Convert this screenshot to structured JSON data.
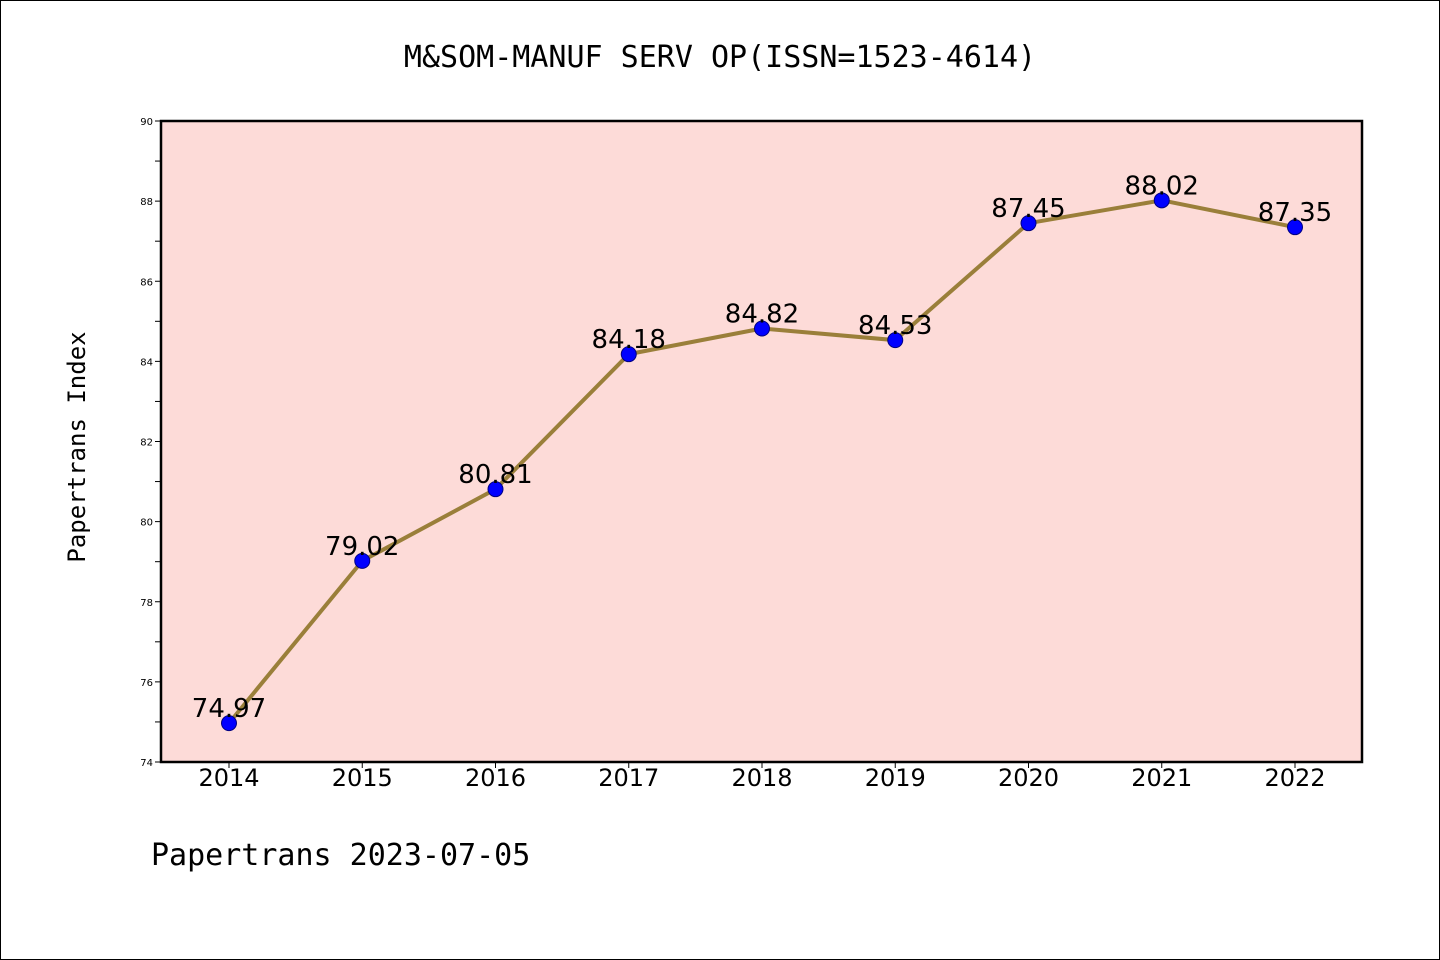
{
  "chart_data": {
    "type": "line",
    "title": "M&SOM-MANUF SERV OP(ISSN=1523-4614)",
    "xlabel": "",
    "ylabel": "Papertrans Index",
    "categories": [
      "2014",
      "2015",
      "2016",
      "2017",
      "2018",
      "2019",
      "2020",
      "2021",
      "2022"
    ],
    "series": [
      {
        "values": [
          74.97,
          79.02,
          80.81,
          84.18,
          84.82,
          84.53,
          87.45,
          88.02,
          87.35
        ]
      }
    ],
    "data_labels": [
      "74.97",
      "79.02",
      "80.81",
      "84.18",
      "84.82",
      "84.53",
      "87.45",
      "88.02",
      "87.35"
    ],
    "ylim": [
      74,
      90
    ],
    "yticks": [
      74,
      76,
      78,
      80,
      82,
      84,
      86,
      88,
      90
    ],
    "grid": false,
    "legend": "none",
    "colors": {
      "plot_background": "#fddbd8",
      "line": "#9a7f3a",
      "marker_fill": "#0000ff",
      "marker_edge": "#000080"
    }
  },
  "footer": "Papertrans 2023-07-05"
}
